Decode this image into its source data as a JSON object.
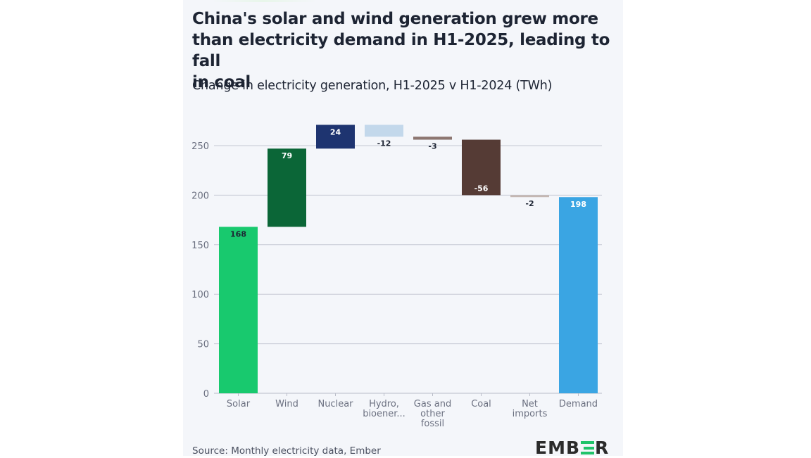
{
  "header": {
    "title": "China's solar and wind generation grew more than electricity demand in H1-2025, leading to fall in coal",
    "title_lines": [
      "China's solar and wind generation grew more",
      "than electricity demand in H1-2025, leading to fall",
      "in coal"
    ],
    "subtitle": "Change in electricity generation, H1-2025 v H1-2024 (TWh)"
  },
  "footer": {
    "source": "Source: Monthly electricity data, Ember",
    "logo_text": "EMBER"
  },
  "chart_data": {
    "type": "bar",
    "subtype": "waterfall",
    "title": "China's solar and wind generation grew more than electricity demand in H1-2025, leading to fall in coal",
    "subtitle": "Change in electricity generation, H1-2025 v H1-2024 (TWh)",
    "xlabel": "",
    "ylabel": "",
    "ylim": [
      0,
      250
    ],
    "yticks": [
      0,
      50,
      100,
      150,
      200,
      250
    ],
    "grid": true,
    "legend": "none",
    "categories": [
      "Solar",
      "Wind",
      "Nuclear",
      "Hydro, bioener...",
      "Gas and other fossil",
      "Coal",
      "Net imports",
      "Demand"
    ],
    "category_lines": [
      [
        "Solar"
      ],
      [
        "Wind"
      ],
      [
        "Nuclear"
      ],
      [
        "Hydro,",
        "bioener..."
      ],
      [
        "Gas and",
        "other",
        "fossil"
      ],
      [
        "Coal"
      ],
      [
        "Net",
        "imports"
      ],
      [
        "Demand"
      ]
    ],
    "values": [
      168,
      79,
      24,
      -12,
      -3,
      -56,
      -2,
      198
    ],
    "labels": [
      "168",
      "79",
      "24",
      "-12",
      "-3",
      "-56",
      "-2",
      "198"
    ],
    "is_total": [
      false,
      false,
      false,
      false,
      false,
      false,
      false,
      true
    ],
    "colors": [
      "#18c96e",
      "#0b6637",
      "#1e3470",
      "#c3d8eb",
      "#8c7670",
      "#553b35",
      "#c4b7b2",
      "#3aa5e3"
    ],
    "label_colors": [
      "#1d2433",
      "#ffffff",
      "#ffffff",
      "#1d2433",
      "#1d2433",
      "#ffffff",
      "#1d2433",
      "#ffffff"
    ],
    "source": "Source: Monthly electricity data, Ember"
  }
}
